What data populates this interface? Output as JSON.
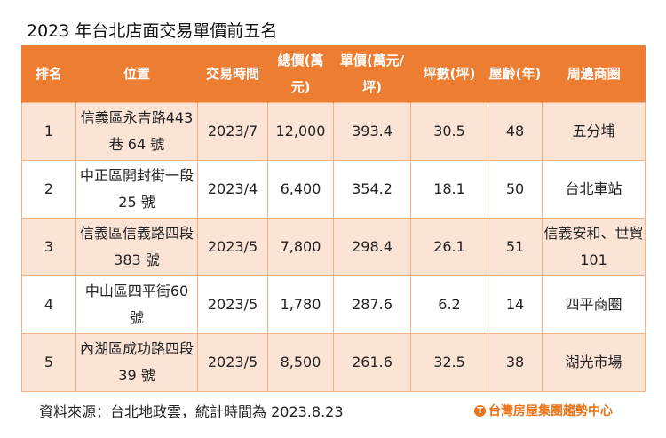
{
  "title": "2023 年台北店面交易單價前五名",
  "headers": [
    "排名",
    "位置",
    "交易時間",
    "總價(萬元)",
    "單價(萬元/坪)",
    "坪數(坪)",
    "屋齡(年)",
    "周邊商圈"
  ],
  "rows": [
    [
      "1",
      "信義區永吉路443 巷 64 號",
      "2023/7",
      "12,000",
      "393.4",
      "30.5",
      "48",
      "五分埔"
    ],
    [
      "2",
      "中正區開封街一段 25 號",
      "2023/4",
      "6,400",
      "354.2",
      "18.1",
      "50",
      "台北車站"
    ],
    [
      "3",
      "信義區信義路四段 383 號",
      "2023/5",
      "7,800",
      "298.4",
      "26.1",
      "51",
      "信義安和、世貿 101"
    ],
    [
      "4",
      "中山區四平街60 號",
      "2023/5",
      "1,780",
      "287.6",
      "6.2",
      "14",
      "四平商圈"
    ],
    [
      "5",
      "內湖區成功路四段 39 號",
      "2023/5",
      "8,500",
      "261.6",
      "32.5",
      "38",
      "湖光市場"
    ]
  ],
  "source": "資料來源：台北地政雲，統計時間為 2023.8.23",
  "logo": "台灣房屋集團趨勢中心",
  "colors": {
    "header": "#ed7d31",
    "row_alt": "#fbe4d5",
    "border": "#f4b183"
  }
}
